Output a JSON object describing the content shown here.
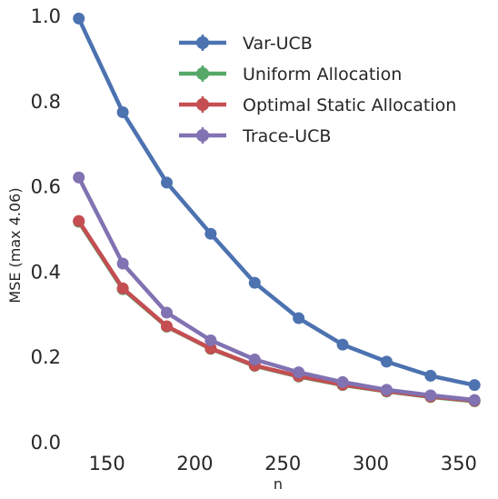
{
  "chart_data": {
    "type": "line",
    "xlabel": "n",
    "ylabel": "MSE (max 4.06)",
    "xlim": [
      130,
      362
    ],
    "ylim": [
      0,
      1.0
    ],
    "xticks": [
      150,
      200,
      250,
      300,
      350
    ],
    "yticks": [
      0.0,
      0.2,
      0.4,
      0.6,
      0.8,
      1.0
    ],
    "ytick_labels": [
      "0.0",
      "0.2",
      "0.4",
      "0.6",
      "0.8",
      "1.0"
    ],
    "grid": false,
    "legend_position": "upper-right",
    "series": [
      {
        "name": "Var-UCB",
        "color": "#4c72b0",
        "x": [
          134,
          159,
          184,
          209,
          234,
          259,
          284,
          309,
          334,
          359
        ],
        "y": [
          0.995,
          0.775,
          0.61,
          0.49,
          0.375,
          0.292,
          0.23,
          0.19,
          0.157,
          0.135
        ],
        "err": [
          0.008,
          0.012,
          0.012,
          0.012,
          0.012,
          0.012,
          0.012,
          0.01,
          0.01,
          0.008
        ]
      },
      {
        "name": "Uniform Allocation",
        "color": "#55a868",
        "x": [
          134,
          159,
          184,
          209,
          234,
          259,
          284,
          309,
          334,
          359
        ],
        "y": [
          0.518,
          0.36,
          0.272,
          0.22,
          0.18,
          0.155,
          0.135,
          0.12,
          0.107,
          0.097
        ],
        "err": [
          0.005,
          0.005,
          0.005,
          0.004,
          0.004,
          0.004,
          0.003,
          0.003,
          0.003,
          0.003
        ]
      },
      {
        "name": "Optimal Static Allocation",
        "color": "#c44e52",
        "x": [
          134,
          159,
          184,
          209,
          234,
          259,
          284,
          309,
          334,
          359
        ],
        "y": [
          0.52,
          0.362,
          0.273,
          0.221,
          0.181,
          0.156,
          0.136,
          0.121,
          0.108,
          0.098
        ],
        "err": [
          0.005,
          0.005,
          0.005,
          0.004,
          0.004,
          0.004,
          0.003,
          0.003,
          0.003,
          0.003
        ]
      },
      {
        "name": "Trace-UCB",
        "color": "#8172b2",
        "x": [
          134,
          159,
          184,
          209,
          234,
          259,
          284,
          309,
          334,
          359
        ],
        "y": [
          0.622,
          0.42,
          0.305,
          0.24,
          0.195,
          0.165,
          0.142,
          0.124,
          0.111,
          0.1
        ],
        "err": [
          0.005,
          0.005,
          0.005,
          0.004,
          0.004,
          0.004,
          0.003,
          0.003,
          0.003,
          0.003
        ]
      }
    ]
  }
}
